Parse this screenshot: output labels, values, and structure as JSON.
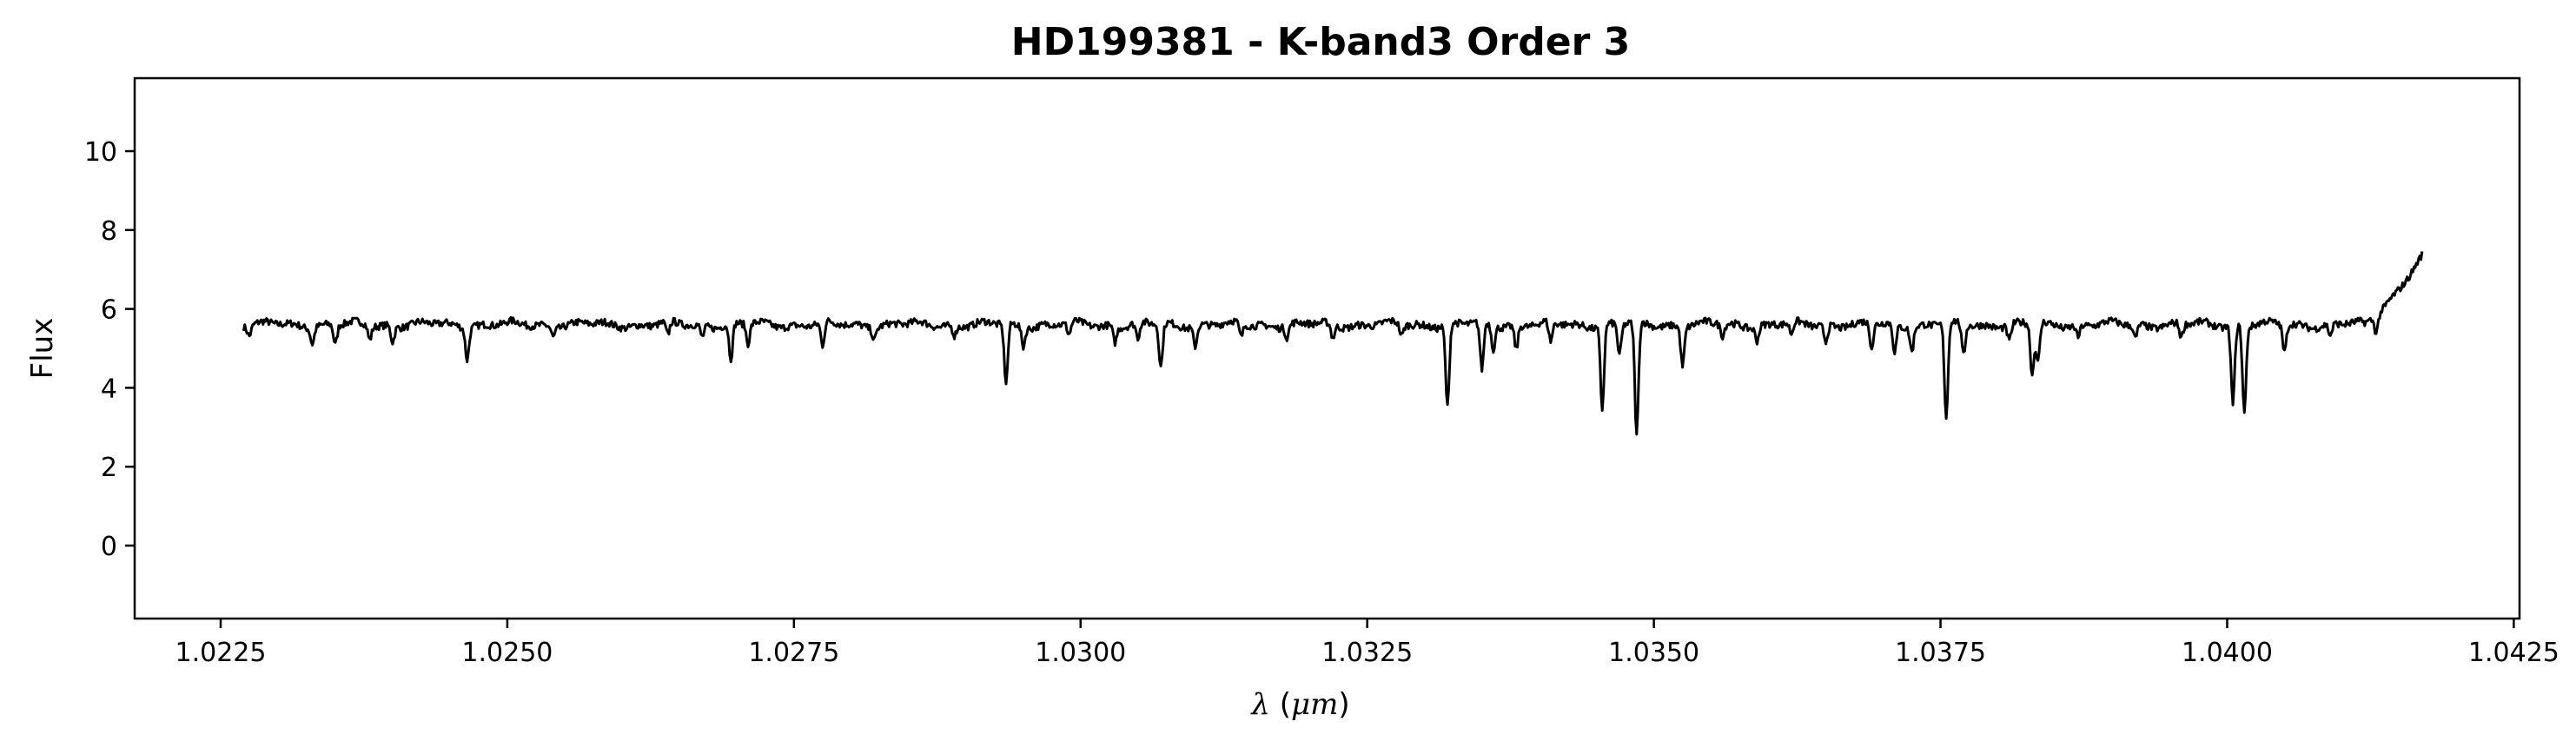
{
  "chart_data": {
    "type": "line",
    "title": "HD199381 - K-band3 Order 3",
    "xlabel": "λ (μm)",
    "xlabel_symbol": "λ",
    "xlabel_unit": "μm",
    "ylabel": "Flux",
    "xlim": [
      1.02175,
      1.04255
    ],
    "ylim": [
      -1.85,
      11.85
    ],
    "xticks": [
      "1.0225",
      "1.0250",
      "1.0275",
      "1.0300",
      "1.0325",
      "1.0350",
      "1.0375",
      "1.0400",
      "1.0425"
    ],
    "yticks": [
      "0",
      "2",
      "4",
      "6",
      "8",
      "10"
    ],
    "grid": false,
    "line_color": "#000000",
    "series": [
      {
        "continuum": 5.6,
        "noise": 0.09,
        "x_range": [
          1.0227,
          1.0417
        ],
        "absorption_lines": [
          [
            1.02275,
            0.25
          ],
          [
            1.0233,
            0.4
          ],
          [
            1.0235,
            0.5
          ],
          [
            1.0238,
            0.35
          ],
          [
            1.024,
            0.4
          ],
          [
            1.02465,
            0.8
          ],
          [
            1.0254,
            0.25
          ],
          [
            1.0264,
            0.35
          ],
          [
            1.0267,
            0.3
          ],
          [
            1.02695,
            0.9
          ],
          [
            1.0271,
            0.5
          ],
          [
            1.02775,
            0.6
          ],
          [
            1.0282,
            0.3
          ],
          [
            1.0289,
            0.25
          ],
          [
            1.02935,
            1.5
          ],
          [
            1.0295,
            0.5
          ],
          [
            1.0299,
            0.3
          ],
          [
            1.0303,
            0.4
          ],
          [
            1.0305,
            0.4
          ],
          [
            1.0307,
            1.1
          ],
          [
            1.031,
            0.5
          ],
          [
            1.0314,
            0.35
          ],
          [
            1.0318,
            0.3
          ],
          [
            1.0322,
            0.35
          ],
          [
            1.0328,
            0.3
          ],
          [
            1.0332,
            2.1
          ],
          [
            1.0335,
            1.2
          ],
          [
            1.0336,
            0.6
          ],
          [
            1.0338,
            0.6
          ],
          [
            1.0341,
            0.5
          ],
          [
            1.03455,
            2.1
          ],
          [
            1.0347,
            0.8
          ],
          [
            1.03485,
            2.9
          ],
          [
            1.03525,
            1.0
          ],
          [
            1.0356,
            0.3
          ],
          [
            1.0359,
            0.35
          ],
          [
            1.0362,
            0.3
          ],
          [
            1.0365,
            0.4
          ],
          [
            1.0369,
            0.6
          ],
          [
            1.0371,
            0.7
          ],
          [
            1.03725,
            0.6
          ],
          [
            1.03755,
            2.4
          ],
          [
            1.0377,
            0.8
          ],
          [
            1.0381,
            0.4
          ],
          [
            1.0383,
            1.3
          ],
          [
            1.03835,
            1.0
          ],
          [
            1.0387,
            0.3
          ],
          [
            1.0392,
            0.35
          ],
          [
            1.0396,
            0.35
          ],
          [
            1.04005,
            2.0
          ],
          [
            1.04015,
            2.2
          ],
          [
            1.0405,
            0.7
          ],
          [
            1.0409,
            0.3
          ],
          [
            1.0413,
            0.4
          ]
        ],
        "end_rise": [
          1.0412,
          7.3
        ]
      }
    ]
  }
}
